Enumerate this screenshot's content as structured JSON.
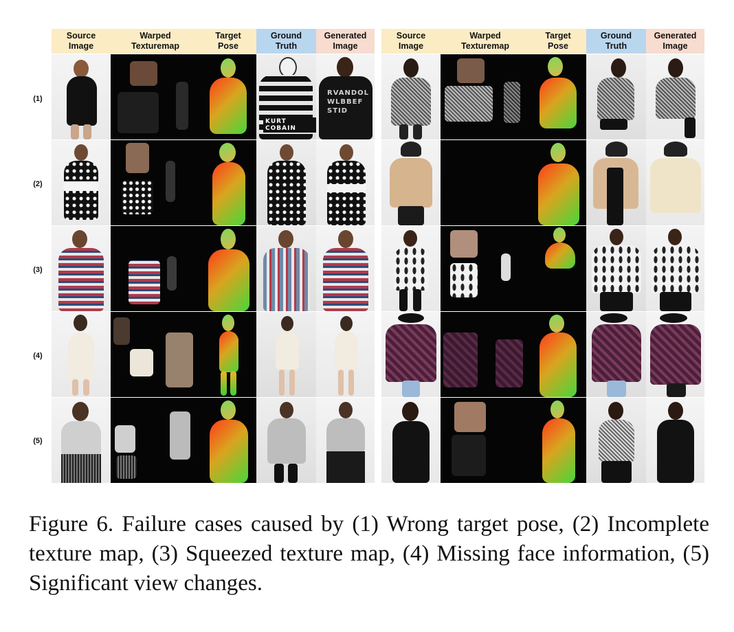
{
  "figure": {
    "columns_left": [
      "Source\nImage",
      "Warped\nTexturemap",
      "Target\nPose",
      "Ground\nTruth",
      "Generated\nImage"
    ],
    "columns_right": [
      "Source\nImage",
      "Warped\nTexturemap",
      "Target\nPose",
      "Ground\nTruth",
      "Generated\nImage"
    ],
    "row_labels": [
      "(1)",
      "(2)",
      "(3)",
      "(4)",
      "(5)"
    ],
    "shirt_text": "KURT COBAIN",
    "generated_text": "RVANDOL\nWLBBEF\nSTID"
  },
  "caption": "Figure 6. Failure cases caused by (1) Wrong target pose, (2) Incomplete texture map, (3) Squeezed texture map, (4) Missing face information, (5) Significant view changes.",
  "colors": {
    "header_yellow": "#fbecc4",
    "header_blue": "#b9d6ef",
    "header_peach": "#f7dccf"
  }
}
